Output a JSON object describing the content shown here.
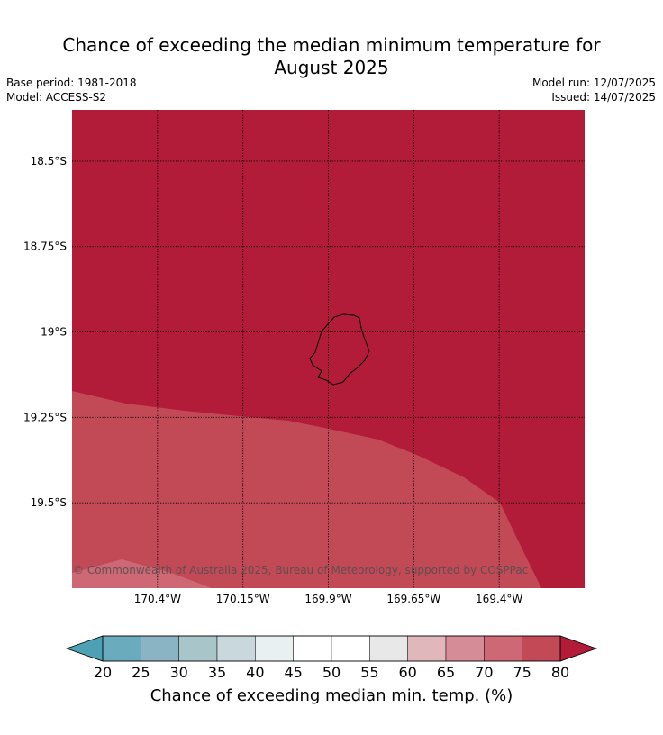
{
  "header": {
    "title_line1": "Chance of exceeding the median minimum temperature for",
    "title_line2": "August 2025",
    "base_period": "Base period: 1981-2018",
    "model": "Model: ACCESS-S2",
    "model_run": "Model run: 12/07/2025",
    "issued": "Issued: 14/07/2025"
  },
  "map": {
    "region": "Niue",
    "lon_range": [
      -170.65,
      -169.15
    ],
    "lat_range": [
      -19.75,
      -18.35
    ],
    "lon_ticks": [
      -170.4,
      -170.15,
      -169.9,
      -169.65,
      -169.4
    ],
    "lon_tick_labels": [
      "170.4°W",
      "170.15°W",
      "169.9°W",
      "169.65°W",
      "169.4°W"
    ],
    "lat_ticks": [
      -18.5,
      -18.75,
      -19.0,
      -19.25,
      -19.5
    ],
    "lat_tick_labels": [
      "18.5°S",
      "18.75°S",
      "19°S",
      "19.25°S",
      "19.5°S"
    ],
    "gridlines": "dotted",
    "credit": "© Commonwealth of Australia 2025, Bureau of Meteorology, supported by COSPPac",
    "fill_bands": [
      {
        "range": "75-80",
        "color": "#b21c39"
      },
      {
        "range": "70-75",
        "color": "#c24a57"
      },
      {
        "range": "65-70",
        "color": "#cd6874"
      }
    ],
    "coastline_color": "#000000"
  },
  "colorbar": {
    "title": "Chance of exceeding median min. temp. (%)",
    "labels": [
      "20",
      "25",
      "30",
      "35",
      "40",
      "45",
      "50",
      "55",
      "60",
      "65",
      "70",
      "75",
      "80"
    ],
    "colors": [
      "#6aacbe",
      "#8ab4c3",
      "#a8c5ca",
      "#c8d8dc",
      "#e8f0f2",
      "#ffffff",
      "#ffffff",
      "#e8e8e8",
      "#e0b8bc",
      "#d68c96",
      "#cd6874",
      "#c24a57"
    ],
    "extend_low_color": "#4ea1b5",
    "extend_high_color": "#b21c39"
  }
}
